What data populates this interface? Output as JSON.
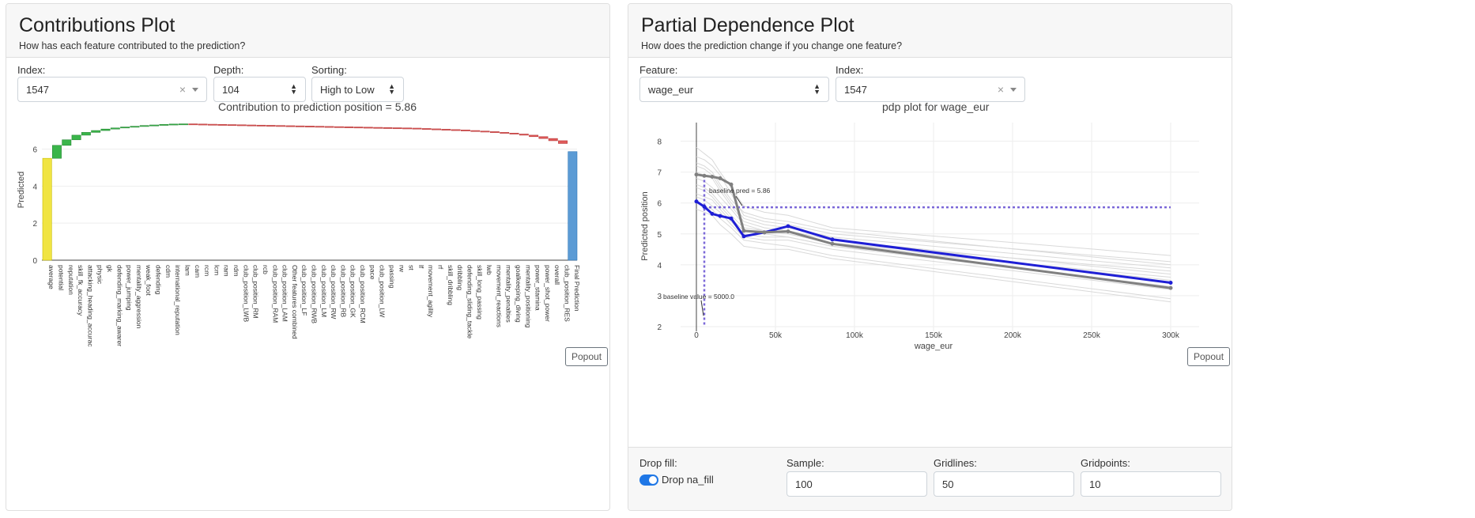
{
  "contributions": {
    "title": "Contributions Plot",
    "subtitle": "How has each feature contributed to the prediction?",
    "index_label": "Index:",
    "index_value": "1547",
    "depth_label": "Depth:",
    "depth_value": "104",
    "sorting_label": "Sorting:",
    "sorting_value": "High to Low",
    "plot_title": "Contribution to prediction position = 5.86",
    "y_axis_label": "Predicted",
    "y_ticks": [
      "0",
      "2",
      "4",
      "6"
    ],
    "popout": "Popout"
  },
  "pdp": {
    "title": "Partial Dependence Plot",
    "subtitle": "How does the prediction change if you change one feature?",
    "feature_label": "Feature:",
    "feature_value": "wage_eur",
    "index_label": "Index:",
    "index_value": "1547",
    "plot_title": "pdp plot for wage_eur",
    "y_axis_label": "Predicted position",
    "x_axis_label": "wage_eur",
    "y_ticks": [
      "2",
      "3",
      "4",
      "5",
      "6",
      "7",
      "8"
    ],
    "x_ticks": [
      "0",
      "50k",
      "100k",
      "150k",
      "200k",
      "250k",
      "300k"
    ],
    "baseline_pred_annotation": "baseline pred = 5.86",
    "baseline_value_annotation": "baseline value = 5000.0",
    "popout": "Popout",
    "drop_fill_label": "Drop fill:",
    "drop_fill_toggle": "Drop na_fill",
    "sample_label": "Sample:",
    "sample_value": "100",
    "gridlines_label": "Gridlines:",
    "gridlines_value": "50",
    "gridpoints_label": "Gridpoints:",
    "gridpoints_value": "10"
  },
  "chart_data": [
    {
      "type": "bar",
      "title": "Contribution to prediction position = 5.86",
      "xlabel": "",
      "ylabel": "Predicted",
      "ylim": [
        0,
        7.6
      ],
      "categories": [
        "average",
        "potential",
        "reputation",
        "skill_fk_accuracy",
        "attacking_heading_accurac",
        "physic",
        "gk",
        "defending_marking_awarer",
        "power_jumping",
        "mentality_aggression",
        "weak_foot",
        "defending",
        "cdm",
        "international_reputation",
        "lam",
        "cam",
        "rcm",
        "lcm",
        "ram",
        "rdm",
        "club_position_LWB",
        "club_position_RM",
        "rcb",
        "club_position_RAM",
        "club_position_LAM",
        "Other features combined",
        "club_position_LF",
        "club_position_RWB",
        "club_position_LM",
        "club_position_RW",
        "club_position_RB",
        "club_position_GK",
        "club_position_RCM",
        "pace",
        "club_position_LW",
        "passing",
        "rw",
        "st",
        "lf",
        "movement_agility",
        "rf",
        "skill_dribbling",
        "dribbling",
        "defending_sliding_tackle",
        "skill_long_passing",
        "lwb",
        "movement_reactions",
        "mentality_penalties",
        "goalkeeping_diving",
        "mentality_positioning",
        "power_stamina",
        "power_shot_power",
        "overall",
        "club_position_RES",
        "Final Prediction"
      ],
      "base": 5.5,
      "contributions": [
        0.7,
        0.3,
        0.25,
        0.15,
        0.1,
        0.08,
        0.06,
        0.05,
        0.04,
        0.04,
        0.03,
        0.03,
        0.02,
        0.01,
        -0.01,
        -0.01,
        -0.01,
        -0.01,
        -0.01,
        -0.01,
        -0.01,
        -0.01,
        -0.01,
        -0.01,
        -0.01,
        -0.01,
        -0.01,
        -0.01,
        -0.01,
        -0.01,
        -0.01,
        -0.01,
        -0.01,
        -0.01,
        -0.01,
        -0.01,
        -0.01,
        -0.02,
        -0.02,
        -0.02,
        -0.02,
        -0.02,
        -0.03,
        -0.03,
        -0.03,
        -0.04,
        -0.04,
        -0.05,
        -0.06,
        -0.08,
        -0.1,
        -0.12,
        -0.15,
        -0.4
      ],
      "final_prediction": 5.86
    },
    {
      "type": "line",
      "title": "pdp plot for wage_eur",
      "xlabel": "wage_eur",
      "ylabel": "Predicted position",
      "xlim": [
        0,
        300000
      ],
      "ylim": [
        2,
        8.5
      ],
      "x": [
        0,
        5000,
        10000,
        15000,
        22000,
        30000,
        43000,
        58000,
        86000,
        300000
      ],
      "series": [
        {
          "values": [
            6.05,
            5.88,
            5.65,
            5.58,
            5.5,
            4.92,
            5.05,
            5.25,
            4.82,
            3.42
          ],
          "color": "#1f1fd6"
        },
        {
          "values": [
            6.92,
            6.88,
            6.85,
            6.8,
            6.6,
            5.1,
            5.05,
            5.08,
            4.68,
            3.25
          ],
          "color": "#808080"
        }
      ],
      "baseline_pred": 5.86,
      "baseline_value": 5000.0
    }
  ]
}
